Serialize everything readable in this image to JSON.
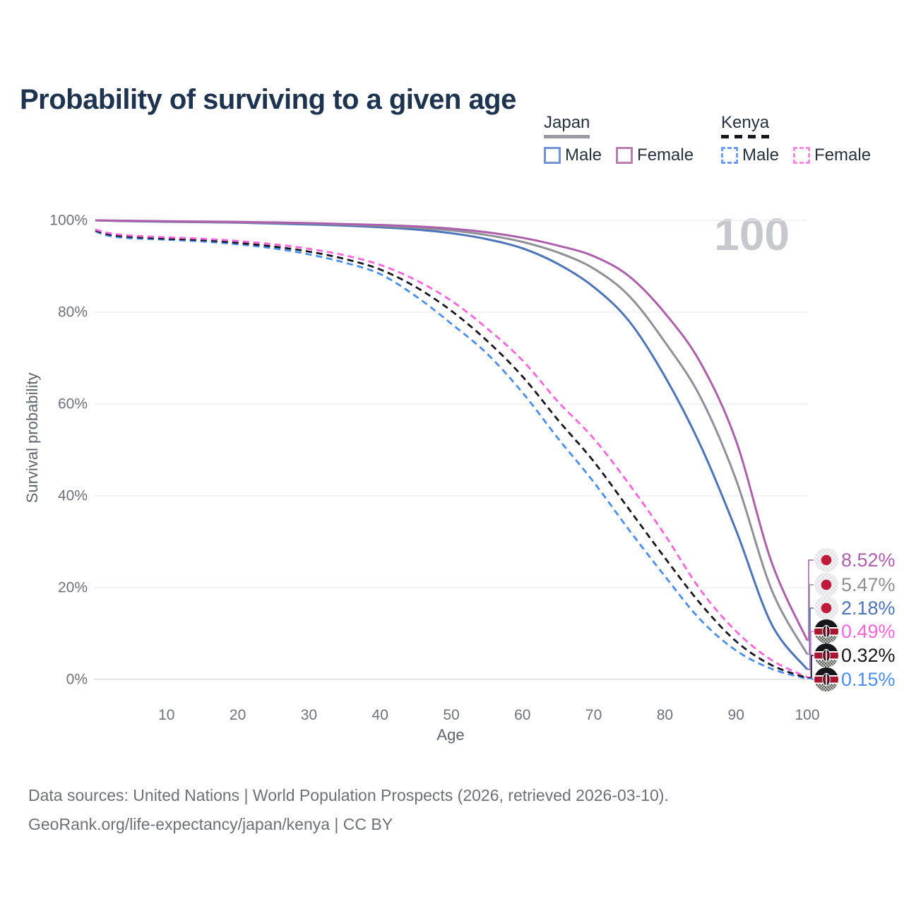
{
  "title": {
    "text": "Probability of surviving to a given age",
    "color": "#1d3350"
  },
  "legend": {
    "text_color": "#27313f",
    "groups": [
      {
        "label": "Japan",
        "underline": {
          "style": "solid",
          "color": "#9a9aa2"
        },
        "items": [
          {
            "label": "Male",
            "swatch_color": "#6f93d4",
            "swatch_style": "solid"
          },
          {
            "label": "Female",
            "swatch_color": "#b87fb5",
            "swatch_style": "solid"
          }
        ]
      },
      {
        "label": "Kenya",
        "underline": {
          "style": "dashed",
          "color": "#17171f"
        },
        "items": [
          {
            "label": "Male",
            "swatch_color": "#6b9df0",
            "swatch_style": "dashed"
          },
          {
            "label": "Female",
            "swatch_color": "#ff8ae4",
            "swatch_style": "dashed"
          }
        ]
      }
    ]
  },
  "watermark": {
    "text": "100",
    "color": "#c7c7ce"
  },
  "footer": {
    "line1": "Data sources: United Nations | World Population Prospects (2026, retrieved 2026-03-10).",
    "line2": "GeoRank.org/life-expectancy/japan/kenya | CC BY",
    "color": "#6d7076"
  },
  "chart_data": {
    "type": "line",
    "title": "Probability of surviving to a given age",
    "xlabel": "Age",
    "ylabel": "Survival probability",
    "xlim": [
      0,
      100
    ],
    "ylim": [
      0,
      100
    ],
    "grid": "horizontal-only",
    "legend_position": "top-right",
    "axis_text_color": "#6e727a",
    "grid_color": "#ececf0",
    "baseline_color": "#d4d4da",
    "x_ticks": [
      10,
      20,
      30,
      40,
      50,
      60,
      70,
      80,
      90,
      100
    ],
    "y_ticks": [
      {
        "value": 0,
        "label": "0%"
      },
      {
        "value": 20,
        "label": "20%"
      },
      {
        "value": 40,
        "label": "40%"
      },
      {
        "value": 60,
        "label": "60%"
      },
      {
        "value": 80,
        "label": "80%"
      },
      {
        "value": 100,
        "label": "100%"
      }
    ],
    "series": [
      {
        "name": "Kenya Male",
        "country": "Kenya",
        "sex": "Male",
        "color": "#4a8ef2",
        "dash": true,
        "flag": "kenya",
        "end_label": "0.15%",
        "end_value": 0.15,
        "points": [
          [
            0,
            97.6
          ],
          [
            2,
            96.6
          ],
          [
            5,
            96.1
          ],
          [
            10,
            95.8
          ],
          [
            15,
            95.4
          ],
          [
            20,
            94.8
          ],
          [
            25,
            93.9
          ],
          [
            30,
            92.6
          ],
          [
            35,
            90.8
          ],
          [
            40,
            88.3
          ],
          [
            45,
            83.5
          ],
          [
            50,
            77.5
          ],
          [
            55,
            71.0
          ],
          [
            60,
            62.5
          ],
          [
            65,
            52.5
          ],
          [
            70,
            43.0
          ],
          [
            75,
            32.5
          ],
          [
            80,
            22.5
          ],
          [
            85,
            13.0
          ],
          [
            90,
            6.3
          ],
          [
            95,
            2.3
          ],
          [
            100,
            0.15
          ]
        ]
      },
      {
        "name": "Kenya",
        "country": "Kenya",
        "sex": "Both sexes",
        "color": "#17171f",
        "dash": true,
        "flag": "kenya",
        "end_label": "0.32%",
        "end_value": 0.32,
        "points": [
          [
            0,
            97.8
          ],
          [
            2,
            96.9
          ],
          [
            5,
            96.4
          ],
          [
            10,
            96.0
          ],
          [
            15,
            95.7
          ],
          [
            20,
            95.1
          ],
          [
            25,
            94.3
          ],
          [
            30,
            93.2
          ],
          [
            35,
            91.6
          ],
          [
            40,
            89.3
          ],
          [
            45,
            85.5
          ],
          [
            50,
            80.3
          ],
          [
            55,
            73.8
          ],
          [
            60,
            66.0
          ],
          [
            65,
            56.5
          ],
          [
            70,
            47.5
          ],
          [
            75,
            37.0
          ],
          [
            80,
            26.5
          ],
          [
            85,
            16.5
          ],
          [
            90,
            8.3
          ],
          [
            95,
            3.1
          ],
          [
            100,
            0.32
          ]
        ]
      },
      {
        "name": "Kenya Female",
        "country": "Kenya",
        "sex": "Female",
        "color": "#ff63de",
        "dash": true,
        "flag": "kenya",
        "end_label": "0.49%",
        "end_value": 0.49,
        "points": [
          [
            0,
            98.0
          ],
          [
            2,
            97.2
          ],
          [
            5,
            96.7
          ],
          [
            10,
            96.3
          ],
          [
            15,
            96.0
          ],
          [
            20,
            95.5
          ],
          [
            25,
            94.8
          ],
          [
            30,
            93.8
          ],
          [
            35,
            92.4
          ],
          [
            40,
            90.3
          ],
          [
            45,
            87.0
          ],
          [
            50,
            82.5
          ],
          [
            55,
            76.5
          ],
          [
            60,
            69.5
          ],
          [
            65,
            60.5
          ],
          [
            70,
            52.5
          ],
          [
            75,
            42.5
          ],
          [
            80,
            31.5
          ],
          [
            85,
            19.5
          ],
          [
            90,
            10.5
          ],
          [
            95,
            4.2
          ],
          [
            100,
            0.49
          ]
        ]
      },
      {
        "name": "Japan Male",
        "country": "Japan",
        "sex": "Male",
        "color": "#4c74b9",
        "dash": false,
        "flag": "japan",
        "end_label": "2.18%",
        "end_value": 2.18,
        "points": [
          [
            0,
            100
          ],
          [
            5,
            99.8
          ],
          [
            10,
            99.7
          ],
          [
            15,
            99.6
          ],
          [
            20,
            99.5
          ],
          [
            25,
            99.3
          ],
          [
            30,
            99.1
          ],
          [
            35,
            98.85
          ],
          [
            40,
            98.5
          ],
          [
            45,
            98.0
          ],
          [
            50,
            97.2
          ],
          [
            55,
            95.9
          ],
          [
            60,
            93.9
          ],
          [
            65,
            90.5
          ],
          [
            70,
            85.5
          ],
          [
            75,
            78.0
          ],
          [
            80,
            66.0
          ],
          [
            85,
            51.0
          ],
          [
            90,
            32.5
          ],
          [
            95,
            12.0
          ],
          [
            100,
            2.18
          ]
        ]
      },
      {
        "name": "Japan",
        "country": "Japan",
        "sex": "Both sexes",
        "color": "#909098",
        "dash": false,
        "flag": "japan",
        "end_label": "5.47%",
        "end_value": 5.47,
        "points": [
          [
            0,
            100
          ],
          [
            5,
            99.85
          ],
          [
            10,
            99.75
          ],
          [
            15,
            99.65
          ],
          [
            20,
            99.55
          ],
          [
            25,
            99.45
          ],
          [
            30,
            99.3
          ],
          [
            35,
            99.1
          ],
          [
            40,
            98.8
          ],
          [
            45,
            98.4
          ],
          [
            50,
            97.8
          ],
          [
            55,
            96.8
          ],
          [
            60,
            95.3
          ],
          [
            65,
            93.0
          ],
          [
            70,
            89.5
          ],
          [
            75,
            83.5
          ],
          [
            80,
            73.5
          ],
          [
            85,
            61.5
          ],
          [
            90,
            43.5
          ],
          [
            95,
            19.5
          ],
          [
            100,
            5.47
          ]
        ]
      },
      {
        "name": "Japan Female",
        "country": "Japan",
        "sex": "Female",
        "color": "#ad5fab",
        "dash": false,
        "flag": "japan",
        "end_label": "8.52%",
        "end_value": 8.52,
        "points": [
          [
            0,
            100
          ],
          [
            5,
            99.9
          ],
          [
            10,
            99.8
          ],
          [
            15,
            99.72
          ],
          [
            20,
            99.65
          ],
          [
            25,
            99.55
          ],
          [
            30,
            99.4
          ],
          [
            35,
            99.2
          ],
          [
            40,
            99.0
          ],
          [
            45,
            98.7
          ],
          [
            50,
            98.2
          ],
          [
            55,
            97.4
          ],
          [
            60,
            96.2
          ],
          [
            65,
            94.5
          ],
          [
            70,
            92.2
          ],
          [
            75,
            87.8
          ],
          [
            80,
            79.8
          ],
          [
            85,
            69.0
          ],
          [
            90,
            52.0
          ],
          [
            95,
            25.5
          ],
          [
            100,
            8.52
          ]
        ]
      }
    ]
  }
}
